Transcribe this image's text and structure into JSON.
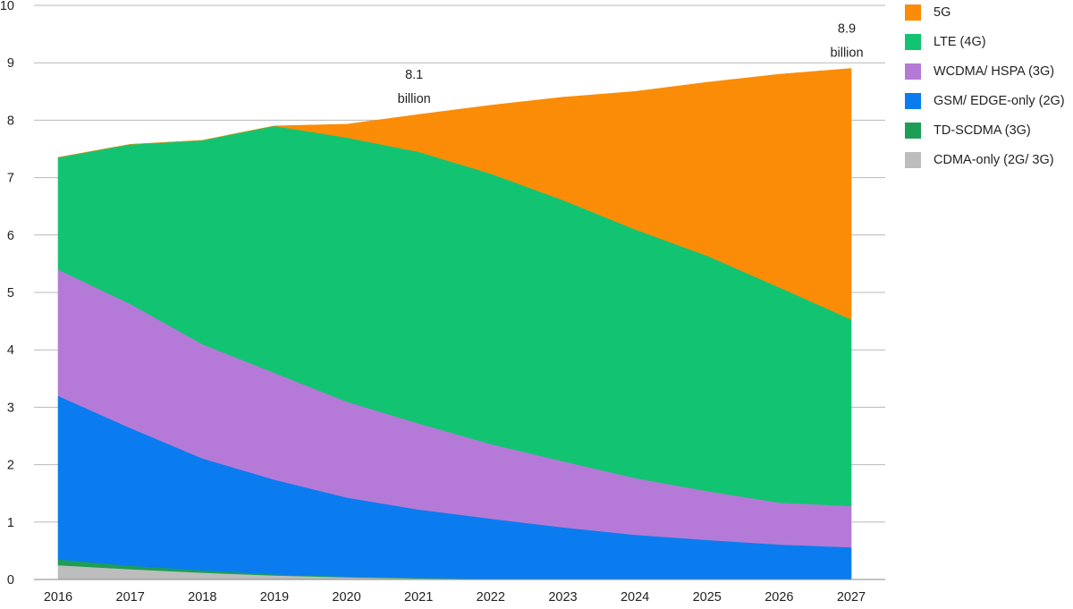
{
  "chart_data": {
    "type": "area",
    "stacked": true,
    "title": "",
    "xlabel": "",
    "ylabel": "",
    "ylim": [
      0,
      10
    ],
    "y_ticks": [
      0,
      1,
      2,
      3,
      4,
      5,
      6,
      7,
      8,
      9,
      10
    ],
    "grid": "horizontal",
    "legend_position": "right",
    "categories": [
      "2016",
      "2017",
      "2018",
      "2019",
      "2020",
      "2021",
      "2022",
      "2023",
      "2024",
      "2025",
      "2026",
      "2027"
    ],
    "series": [
      {
        "name": "CDMA-only (2G/ 3G)",
        "color": "#bdbdbd",
        "values": [
          0.25,
          0.18,
          0.12,
          0.07,
          0.04,
          0.02,
          0.01,
          0.01,
          0.0,
          0.0,
          0.0,
          0.0
        ]
      },
      {
        "name": "TD-SCDMA (3G)",
        "color": "#1e9e55",
        "values": [
          0.1,
          0.06,
          0.04,
          0.02,
          0.01,
          0.01,
          0.0,
          0.0,
          0.0,
          0.0,
          0.0,
          0.0
        ]
      },
      {
        "name": "GSM/ EDGE-only (2G)",
        "color": "#0a7cef",
        "values": [
          2.85,
          2.4,
          1.95,
          1.65,
          1.38,
          1.19,
          1.05,
          0.9,
          0.78,
          0.69,
          0.61,
          0.56
        ]
      },
      {
        "name": "WCDMA/ HSPA (3G)",
        "color": "#b57ad8",
        "values": [
          2.2,
          2.16,
          1.99,
          1.86,
          1.67,
          1.5,
          1.3,
          1.15,
          0.99,
          0.85,
          0.73,
          0.72
        ]
      },
      {
        "name": "LTE (4G)",
        "color": "#12c472",
        "values": [
          1.95,
          2.78,
          3.55,
          4.3,
          4.6,
          4.73,
          4.71,
          4.55,
          4.33,
          4.1,
          3.75,
          3.25
        ]
      },
      {
        "name": "5G",
        "color": "#fb8c07",
        "values": [
          0.0,
          0.0,
          0.0,
          0.0,
          0.23,
          0.65,
          1.19,
          1.79,
          2.4,
          3.02,
          3.71,
          4.37
        ]
      }
    ],
    "legend_order": [
      "5G",
      "LTE (4G)",
      "WCDMA/ HSPA (3G)",
      "GSM/ EDGE-only (2G)",
      "TD-SCDMA (3G)",
      "CDMA-only (2G/ 3G)"
    ],
    "annotations": [
      {
        "category": "2021",
        "value": 8.1,
        "line1": "8.1",
        "line2": "billion"
      },
      {
        "category": "2027",
        "value": 8.9,
        "line1": "8.9",
        "line2": "billion"
      }
    ]
  }
}
